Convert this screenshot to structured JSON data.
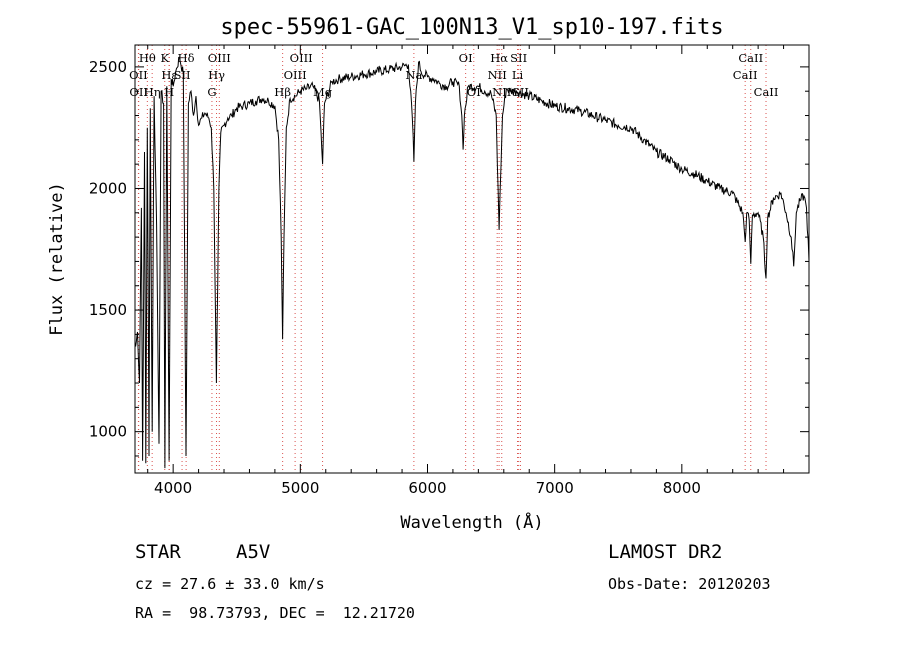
{
  "chart_data": {
    "type": "line",
    "title": "spec-55961-GAC_100N13_V1_sp10-197.fits",
    "xlabel": "Wavelength (Å)",
    "ylabel": "Flux (relative)",
    "xlim": [
      3700,
      9000
    ],
    "ylim": [
      830,
      2590
    ],
    "xticks": [
      4000,
      5000,
      6000,
      7000,
      8000
    ],
    "yticks": [
      1000,
      1500,
      2000,
      2500
    ],
    "grid": false,
    "series": [
      {
        "values": [
          [
            3705,
            1350
          ],
          [
            3720,
            1410
          ],
          [
            3735,
            1200
          ],
          [
            3750,
            1920
          ],
          [
            3760,
            880
          ],
          [
            3775,
            2150
          ],
          [
            3785,
            870
          ],
          [
            3797,
            2250
          ],
          [
            3810,
            900
          ],
          [
            3820,
            2330
          ],
          [
            3835,
            1000
          ],
          [
            3850,
            2380
          ],
          [
            3870,
            1850
          ],
          [
            3889,
            950
          ],
          [
            3905,
            2400
          ],
          [
            3925,
            2350
          ],
          [
            3935,
            850
          ],
          [
            3950,
            2420
          ],
          [
            3968,
            880
          ],
          [
            3985,
            2450
          ],
          [
            4000,
            2420
          ],
          [
            4020,
            2480
          ],
          [
            4050,
            2540
          ],
          [
            4080,
            2470
          ],
          [
            4101,
            900
          ],
          [
            4120,
            2350
          ],
          [
            4140,
            2400
          ],
          [
            4160,
            2300
          ],
          [
            4180,
            2380
          ],
          [
            4200,
            2260
          ],
          [
            4225,
            2290
          ],
          [
            4250,
            2310
          ],
          [
            4280,
            2290
          ],
          [
            4300,
            2250
          ],
          [
            4320,
            2000
          ],
          [
            4330,
            1600
          ],
          [
            4340,
            1200
          ],
          [
            4350,
            1600
          ],
          [
            4360,
            2000
          ],
          [
            4375,
            2230
          ],
          [
            4400,
            2260
          ],
          [
            4430,
            2290
          ],
          [
            4460,
            2300
          ],
          [
            4500,
            2330
          ],
          [
            4550,
            2340
          ],
          [
            4600,
            2350
          ],
          [
            4650,
            2360
          ],
          [
            4700,
            2370
          ],
          [
            4750,
            2360
          ],
          [
            4800,
            2340
          ],
          [
            4830,
            2200
          ],
          [
            4850,
            1800
          ],
          [
            4861,
            1380
          ],
          [
            4872,
            1800
          ],
          [
            4890,
            2250
          ],
          [
            4920,
            2370
          ],
          [
            4960,
            2380
          ],
          [
            5000,
            2400
          ],
          [
            5050,
            2410
          ],
          [
            5100,
            2420
          ],
          [
            5150,
            2360
          ],
          [
            5175,
            2100
          ],
          [
            5190,
            2350
          ],
          [
            5250,
            2440
          ],
          [
            5300,
            2450
          ],
          [
            5400,
            2460
          ],
          [
            5500,
            2470
          ],
          [
            5600,
            2480
          ],
          [
            5700,
            2490
          ],
          [
            5800,
            2500
          ],
          [
            5850,
            2510
          ],
          [
            5880,
            2300
          ],
          [
            5893,
            2110
          ],
          [
            5905,
            2350
          ],
          [
            5930,
            2520
          ],
          [
            5950,
            2480
          ],
          [
            6000,
            2460
          ],
          [
            6050,
            2450
          ],
          [
            6100,
            2430
          ],
          [
            6150,
            2420
          ],
          [
            6200,
            2440
          ],
          [
            6250,
            2420
          ],
          [
            6270,
            2300
          ],
          [
            6280,
            2160
          ],
          [
            6290,
            2300
          ],
          [
            6320,
            2420
          ],
          [
            6400,
            2420
          ],
          [
            6450,
            2400
          ],
          [
            6500,
            2390
          ],
          [
            6540,
            2300
          ],
          [
            6555,
            2000
          ],
          [
            6563,
            1830
          ],
          [
            6572,
            2000
          ],
          [
            6590,
            2300
          ],
          [
            6620,
            2410
          ],
          [
            6650,
            2400
          ],
          [
            6700,
            2400
          ],
          [
            6800,
            2380
          ],
          [
            6900,
            2360
          ],
          [
            7000,
            2340
          ],
          [
            7100,
            2330
          ],
          [
            7200,
            2320
          ],
          [
            7300,
            2300
          ],
          [
            7400,
            2280
          ],
          [
            7500,
            2260
          ],
          [
            7600,
            2250
          ],
          [
            7700,
            2200
          ],
          [
            7800,
            2150
          ],
          [
            7900,
            2120
          ],
          [
            8000,
            2080
          ],
          [
            8100,
            2060
          ],
          [
            8200,
            2030
          ],
          [
            8300,
            2000
          ],
          [
            8400,
            1980
          ],
          [
            8480,
            1900
          ],
          [
            8498,
            1780
          ],
          [
            8510,
            1900
          ],
          [
            8530,
            1870
          ],
          [
            8542,
            1690
          ],
          [
            8555,
            1890
          ],
          [
            8600,
            1900
          ],
          [
            8640,
            1800
          ],
          [
            8662,
            1630
          ],
          [
            8675,
            1880
          ],
          [
            8720,
            1960
          ],
          [
            8780,
            1980
          ],
          [
            8820,
            1900
          ],
          [
            8860,
            1800
          ],
          [
            8880,
            1680
          ],
          [
            8900,
            1900
          ],
          [
            8930,
            1950
          ],
          [
            8960,
            1970
          ],
          [
            8980,
            1920
          ],
          [
            9000,
            1700
          ]
        ]
      }
    ],
    "annotations": [
      {
        "label": "Hθ",
        "wavelength": 3797,
        "row": 0
      },
      {
        "label": "OII",
        "wavelength": 3727,
        "row": 1
      },
      {
        "label": "OII",
        "wavelength": 3729,
        "row": 2
      },
      {
        "label": "K",
        "wavelength": 3934,
        "row": 0
      },
      {
        "label": "Hε",
        "wavelength": 3970,
        "row": 1
      },
      {
        "label": "Hη",
        "wavelength": 3835,
        "row": 2
      },
      {
        "label": "Hδ",
        "wavelength": 4102,
        "row": 0
      },
      {
        "label": "SII",
        "wavelength": 4070,
        "row": 1
      },
      {
        "label": "H",
        "wavelength": 3968,
        "row": 2
      },
      {
        "label": "OIII",
        "wavelength": 4363,
        "row": 0
      },
      {
        "label": "Hγ",
        "wavelength": 4341,
        "row": 1
      },
      {
        "label": "G",
        "wavelength": 4305,
        "row": 2
      },
      {
        "label": "OIII",
        "wavelength": 5007,
        "row": 0
      },
      {
        "label": "OIII",
        "wavelength": 4959,
        "row": 1
      },
      {
        "label": "Hβ",
        "wavelength": 4861,
        "row": 2
      },
      {
        "label": "Mg",
        "wavelength": 5175,
        "row": 2
      },
      {
        "label": "Na",
        "wavelength": 5893,
        "row": 1
      },
      {
        "label": "OI",
        "wavelength": 6300,
        "row": 0
      },
      {
        "label": "OI",
        "wavelength": 6364,
        "row": 2
      },
      {
        "label": "Hα",
        "wavelength": 6563,
        "row": 0
      },
      {
        "label": "SII",
        "wavelength": 6717,
        "row": 0
      },
      {
        "label": "NII",
        "wavelength": 6548,
        "row": 1
      },
      {
        "label": "Li",
        "wavelength": 6708,
        "row": 1
      },
      {
        "label": "NII",
        "wavelength": 6584,
        "row": 2
      },
      {
        "label": "SII",
        "wavelength": 6731,
        "row": 2
      },
      {
        "label": "CaII",
        "wavelength": 8542,
        "row": 0
      },
      {
        "label": "CaII",
        "wavelength": 8498,
        "row": 1
      },
      {
        "label": "CaII",
        "wavelength": 8662,
        "row": 2
      }
    ],
    "line_color": "#000000",
    "marker_line_color": "#d9534f"
  },
  "info": {
    "class": "STAR",
    "subclass": "A5V",
    "survey": "LAMOST DR2",
    "cz": "cz = 27.6 ± 33.0 km/s",
    "obs_date": "Obs-Date: 20120203",
    "radec": "RA =  98.73793, DEC =  12.21720"
  }
}
